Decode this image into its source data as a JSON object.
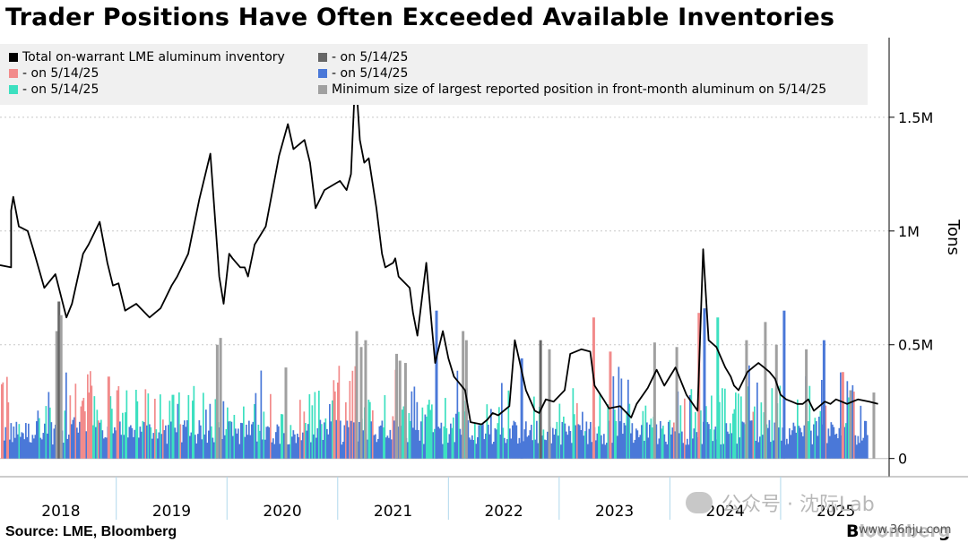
{
  "header": {
    "title": "Trader Positions Have Often Exceeded Available Inventories"
  },
  "footer": {
    "source": "Source: LME, Bloomberg",
    "brand": "Bloomberg",
    "watermark": "公众号 · 沈际Lab",
    "site": "www.36nju.com"
  },
  "legend": {
    "items": [
      {
        "label": "Total on-warrant LME aluminum inventory",
        "color": "#000000"
      },
      {
        "label": "- on 5/14/25",
        "color": "#666666"
      },
      {
        "label": "- on 5/14/25",
        "color": "#f28b8b"
      },
      {
        "label": "- on 5/14/25",
        "color": "#4a78d8"
      },
      {
        "label": "- on 5/14/25",
        "color": "#3de0c0"
      },
      {
        "label": "Minimum size of largest reported position in front-month aluminum on 5/14/25",
        "color": "#a0a0a0"
      }
    ]
  },
  "chart_data": {
    "type": "line+bar",
    "title": "Trader Positions Have Often Exceeded Available Inventories",
    "ylabel": "Tons",
    "ylim": [
      -80000,
      1850000
    ],
    "yticks": [
      0,
      500000,
      1000000,
      1500000
    ],
    "ytick_labels": [
      "0",
      "0.5M",
      "1M",
      "1.5M"
    ],
    "xlim": [
      2017.45,
      2025.48
    ],
    "x_labels": [
      "2018",
      "2019",
      "2020",
      "2021",
      "2022",
      "2023",
      "2024",
      "2025"
    ],
    "x_label_positions": [
      2018.0,
      2019.0,
      2020.0,
      2021.0,
      2022.0,
      2023.0,
      2024.0,
      2025.0
    ],
    "x_dividers": [
      2018.5,
      2019.5,
      2020.5,
      2021.5,
      2022.5,
      2023.5,
      2024.5
    ],
    "grid": true,
    "legend_position": "top",
    "series": [
      {
        "name": "Total on-warrant LME aluminum inventory",
        "kind": "line",
        "color": "#000000",
        "x": [
          2017.45,
          2017.55,
          2017.55,
          2017.57,
          2017.62,
          2017.7,
          2017.75,
          2017.85,
          2017.95,
          2018.05,
          2018.1,
          2018.2,
          2018.25,
          2018.35,
          2018.42,
          2018.47,
          2018.52,
          2018.58,
          2018.68,
          2018.8,
          2018.9,
          2019.0,
          2019.05,
          2019.15,
          2019.25,
          2019.35,
          2019.43,
          2019.47,
          2019.52,
          2019.55,
          2019.62,
          2019.66,
          2019.69,
          2019.75,
          2019.85,
          2019.92,
          2019.97,
          2020.05,
          2020.1,
          2020.2,
          2020.25,
          2020.3,
          2020.38,
          2020.45,
          2020.52,
          2020.58,
          2020.62,
          2020.66,
          2020.7,
          2020.74,
          2020.78,
          2020.85,
          2020.9,
          2020.93,
          2021.0,
          2021.02,
          2021.05,
          2021.15,
          2021.18,
          2021.22,
          2021.3,
          2021.35,
          2021.38,
          2021.45,
          2021.5,
          2021.55,
          2021.65,
          2021.7,
          2021.8,
          2021.85,
          2021.9,
          2021.95,
          2022.05,
          2022.1,
          2022.2,
          2022.28,
          2022.32,
          2022.34,
          2022.38,
          2022.45,
          2022.55,
          2022.6,
          2022.7,
          2022.78,
          2022.82,
          2022.9,
          2022.95,
          2023.05,
          2023.15,
          2023.2,
          2023.3,
          2023.38,
          2023.45,
          2023.55,
          2023.65,
          2023.75,
          2023.8,
          2023.85,
          2023.92,
          2024.0,
          2024.05,
          2024.08,
          2024.12,
          2024.15,
          2024.2,
          2024.25,
          2024.3,
          2024.35,
          2024.4,
          2024.45,
          2024.5,
          2024.55,
          2024.6,
          2024.65,
          2024.7,
          2024.75,
          2024.8,
          2024.85,
          2024.9,
          2024.95,
          2025.0,
          2025.05,
          2025.1,
          2025.15,
          2025.2,
          2025.3,
          2025.38
        ],
        "y": [
          850000,
          840000,
          1090000,
          1150000,
          1020000,
          1000000,
          920000,
          750000,
          810000,
          620000,
          680000,
          900000,
          940000,
          1040000,
          860000,
          760000,
          770000,
          650000,
          680000,
          620000,
          660000,
          760000,
          800000,
          900000,
          1140000,
          1340000,
          800000,
          680000,
          900000,
          880000,
          840000,
          840000,
          800000,
          940000,
          1020000,
          1200000,
          1330000,
          1470000,
          1360000,
          1400000,
          1300000,
          1100000,
          1180000,
          1200000,
          1220000,
          1180000,
          1250000,
          1700000,
          1400000,
          1300000,
          1320000,
          1100000,
          900000,
          840000,
          860000,
          880000,
          800000,
          750000,
          640000,
          540000,
          860000,
          580000,
          420000,
          560000,
          440000,
          360000,
          300000,
          160000,
          150000,
          170000,
          200000,
          190000,
          230000,
          520000,
          300000,
          210000,
          200000,
          220000,
          260000,
          250000,
          300000,
          460000,
          480000,
          470000,
          320000,
          260000,
          220000,
          230000,
          180000,
          240000,
          310000,
          390000,
          320000,
          400000,
          280000,
          210000,
          920000,
          520000,
          490000,
          400000,
          360000,
          320000,
          300000,
          330000,
          380000,
          400000,
          420000,
          400000,
          380000,
          350000,
          280000,
          260000,
          250000,
          240000,
          240000,
          260000,
          210000,
          230000,
          250000,
          240000,
          260000,
          250000,
          240000,
          250000,
          260000,
          250000,
          240000
        ]
      },
      {
        "name": "- on 5/14/25",
        "kind": "bar",
        "color": "#4a78d8",
        "typical_range": [
          60000,
          560000
        ]
      },
      {
        "name": "- on 5/14/25",
        "kind": "bar",
        "color": "#3de0c0",
        "typical_range": [
          80000,
          330000
        ]
      },
      {
        "name": "- on 5/14/25",
        "kind": "bar",
        "color": "#f28b8b",
        "typical_range": [
          100000,
          640000
        ]
      },
      {
        "name": "- on 5/14/25",
        "kind": "bar",
        "color": "#666666",
        "typical_range": [
          100000,
          690000
        ]
      },
      {
        "name": "Minimum size of largest reported position in front-month aluminum on 5/14/25",
        "kind": "bar",
        "color": "#a0a0a0",
        "typical_range": [
          100000,
          600000
        ]
      }
    ]
  }
}
